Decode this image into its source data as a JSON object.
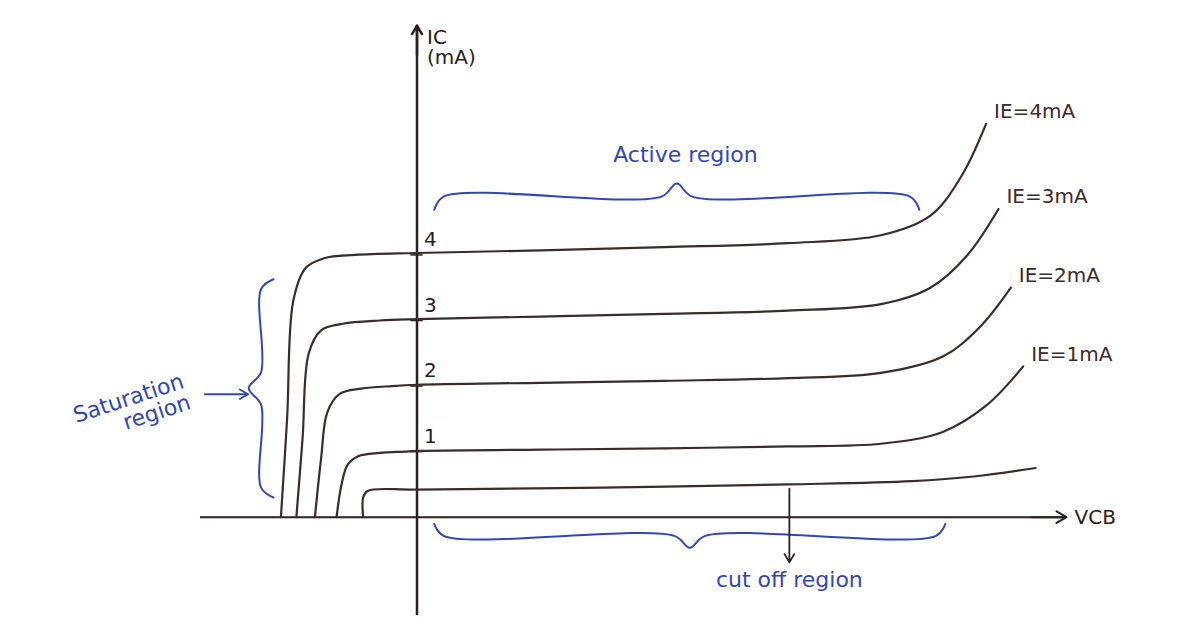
{
  "chart_data": {
    "type": "line",
    "x_label": "VCB",
    "y_label": "IC (mA)",
    "xlim": [
      -3.5,
      10.5
    ],
    "xticks": [],
    "ylim": [
      -1.5,
      7.5
    ],
    "yticks": [
      1,
      2,
      3,
      4
    ],
    "tick_labels": "y",
    "grid": false,
    "series": [
      {
        "name": "IE=4mA",
        "color": "#3b2b2b",
        "x": [
          -2.2,
          -2.1,
          -2.0,
          -1.8,
          -1.5,
          -1.0,
          0,
          2,
          4,
          6,
          7.5,
          8.3,
          8.8,
          9.2
        ],
        "values": [
          0,
          1.5,
          3.3,
          3.8,
          3.95,
          4.0,
          4.03,
          4.07,
          4.12,
          4.18,
          4.3,
          4.6,
          5.2,
          6.0
        ]
      },
      {
        "name": "IE=3mA",
        "color": "#3b2b2b",
        "x": [
          -1.95,
          -1.85,
          -1.75,
          -1.55,
          -1.2,
          -0.6,
          0,
          2,
          4,
          6,
          7.5,
          8.3,
          8.9,
          9.4
        ],
        "values": [
          0,
          1.2,
          2.5,
          2.85,
          2.95,
          3.0,
          3.02,
          3.06,
          3.1,
          3.15,
          3.25,
          3.5,
          4.0,
          4.7
        ]
      },
      {
        "name": "IE=2mA",
        "color": "#3b2b2b",
        "x": [
          -1.65,
          -1.55,
          -1.45,
          -1.25,
          -0.9,
          -0.4,
          0,
          2,
          4,
          6,
          7.5,
          8.5,
          9.1,
          9.6
        ],
        "values": [
          0,
          0.9,
          1.6,
          1.88,
          1.96,
          2.0,
          2.02,
          2.05,
          2.08,
          2.12,
          2.2,
          2.45,
          2.9,
          3.5
        ]
      },
      {
        "name": "IE=1mA",
        "color": "#3b2b2b",
        "x": [
          -1.3,
          -1.22,
          -1.12,
          -0.95,
          -0.6,
          -0.2,
          0,
          2,
          4,
          6,
          7.5,
          8.5,
          9.2,
          9.8
        ],
        "values": [
          0,
          0.5,
          0.8,
          0.93,
          0.98,
          1.0,
          1.01,
          1.03,
          1.05,
          1.08,
          1.12,
          1.3,
          1.7,
          2.3
        ]
      },
      {
        "name": null,
        "color": "#3b2b2b",
        "x": [
          -0.87,
          -0.87,
          -0.8,
          0,
          3,
          6,
          8,
          9,
          10
        ],
        "values": [
          0,
          0.3,
          0.4,
          0.42,
          0.45,
          0.5,
          0.55,
          0.62,
          0.75
        ]
      }
    ],
    "annotations": [
      {
        "text": "Active region",
        "color": "#3446b4"
      },
      {
        "text": "Saturation region",
        "color": "#3446b4"
      },
      {
        "text": "cut off region",
        "color": "#3446b4"
      }
    ]
  }
}
